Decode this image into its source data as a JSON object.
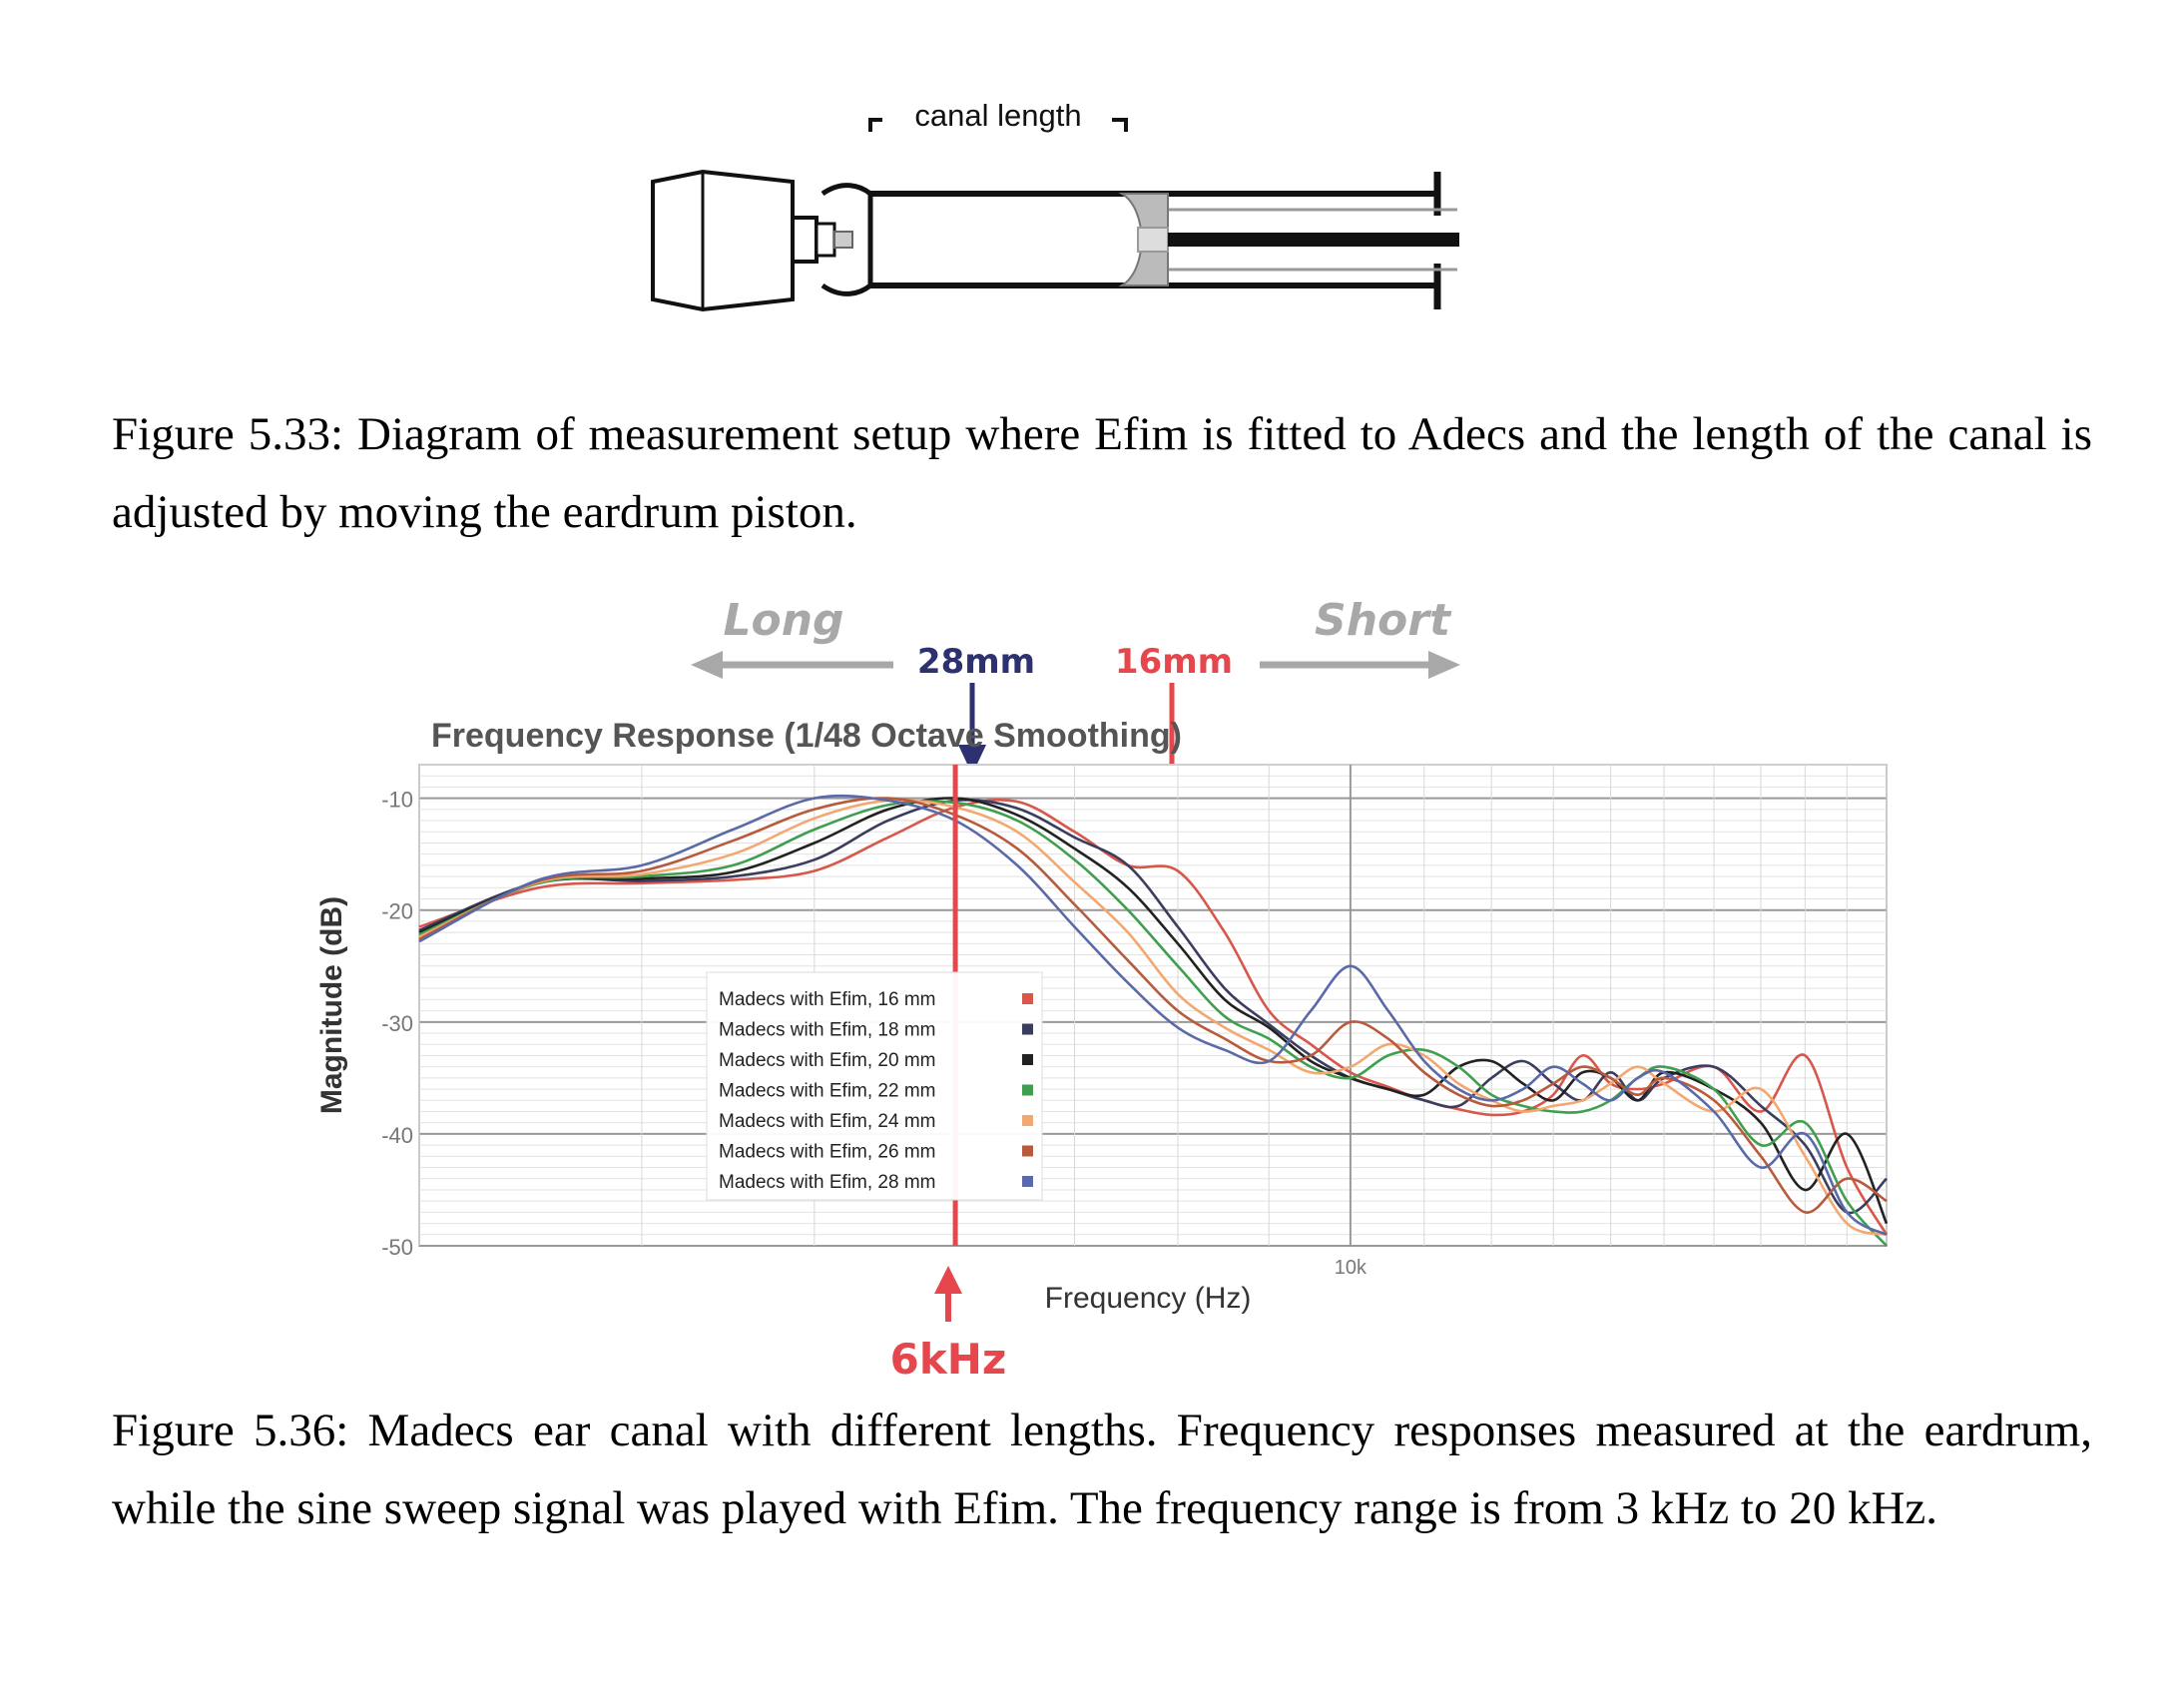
{
  "figure_top": {
    "canal_length_label": "canal length",
    "caption": "Figure 5.33: Diagram of measurement setup where Efim is fitted to Adecs and the length of the canal is adjusted by moving the eardrum piston."
  },
  "figure_bottom": {
    "caption": "Figure 5.36:  Madecs ear canal with different lengths.  Frequency responses measured at the eardrum, while the sine sweep signal was played with Efim. The frequency range is from 3 kHz to 20 kHz.",
    "annotations": {
      "long": "Long",
      "short": "Short",
      "mark_28": "28mm",
      "mark_16": "16mm",
      "mark_6khz": "6kHz",
      "colors": {
        "blue_mark": "#2e3170",
        "red_mark": "#e5474d",
        "gray_arrow": "#a8a8a8"
      }
    }
  },
  "chart_data": {
    "type": "line",
    "title": "Frequency Response (1/48 Octave Smoothing)",
    "xlabel": "Frequency (Hz)",
    "ylabel": "Magnitude (dB)",
    "xscale": "log",
    "xlim": [
      3000,
      20000
    ],
    "ylim": [
      -50,
      -7
    ],
    "yticks": [
      -10,
      -20,
      -30,
      -40,
      -50
    ],
    "xtick_labels": [
      {
        "value": 10000,
        "label": "10k"
      }
    ],
    "grid": true,
    "legend_position": "center-left",
    "series": [
      {
        "name": "Madecs with Efim, 16 mm",
        "color": "#d9564a",
        "x": [
          3000,
          3500,
          4000,
          4500,
          5000,
          5500,
          6000,
          6500,
          7000,
          7500,
          8000,
          8500,
          9000,
          9500,
          10000,
          10500,
          11000,
          11500,
          12000,
          12500,
          13000,
          13500,
          14000,
          14500,
          15000,
          16000,
          17000,
          18000,
          19000,
          20000
        ],
        "y": [
          -21.5,
          -18,
          -17.6,
          -17.3,
          -16.5,
          -13.5,
          -10.8,
          -10.3,
          -13,
          -16,
          -16.5,
          -22,
          -29,
          -32,
          -34.5,
          -35.8,
          -37,
          -37.8,
          -38.3,
          -38,
          -36.5,
          -33,
          -35.5,
          -36,
          -35.5,
          -34,
          -38,
          -33,
          -43,
          -49
        ]
      },
      {
        "name": "Madecs with Efim, 18 mm",
        "color": "#3a3d5e",
        "x": [
          3000,
          3500,
          4000,
          4500,
          5000,
          5500,
          6000,
          6500,
          7000,
          7500,
          8000,
          8500,
          9000,
          9500,
          10000,
          10500,
          11000,
          11500,
          12000,
          12500,
          13000,
          13500,
          14000,
          14500,
          15000,
          16000,
          17000,
          18000,
          19000,
          20000
        ],
        "y": [
          -21.8,
          -17.5,
          -17.4,
          -17,
          -15.5,
          -12,
          -10.2,
          -10.9,
          -13.5,
          -16,
          -21.5,
          -27,
          -30.2,
          -33,
          -35,
          -36,
          -37,
          -37.5,
          -35,
          -33.5,
          -35.5,
          -37,
          -34.5,
          -37,
          -35,
          -34,
          -37.5,
          -41,
          -47,
          -44
        ]
      },
      {
        "name": "Madecs with Efim, 20 mm",
        "color": "#222222",
        "x": [
          3000,
          3500,
          4000,
          4500,
          5000,
          5500,
          6000,
          6500,
          7000,
          7500,
          8000,
          8500,
          9000,
          9500,
          10000,
          10500,
          11000,
          11500,
          12000,
          12500,
          13000,
          13500,
          14000,
          14500,
          15000,
          16000,
          17000,
          18000,
          19000,
          20000
        ],
        "y": [
          -22,
          -17.6,
          -17.2,
          -16.6,
          -14,
          -11,
          -10,
          -11.5,
          -14.5,
          -18,
          -23,
          -28,
          -30.5,
          -33.5,
          -35,
          -36,
          -36.5,
          -34,
          -33.5,
          -35.5,
          -37,
          -34.5,
          -35,
          -37,
          -34.5,
          -36,
          -39,
          -45,
          -40,
          -48
        ]
      },
      {
        "name": "Madecs with Efim, 22 mm",
        "color": "#3f9f4f",
        "x": [
          3000,
          3500,
          4000,
          4500,
          5000,
          5500,
          6000,
          6500,
          7000,
          7500,
          8000,
          8500,
          9000,
          9500,
          10000,
          10500,
          11000,
          11500,
          12000,
          12500,
          13000,
          13500,
          14000,
          14500,
          15000,
          16000,
          17000,
          18000,
          19000,
          20000
        ],
        "y": [
          -22.2,
          -17.6,
          -17,
          -16,
          -12.8,
          -10.6,
          -10.4,
          -12,
          -15.5,
          -20,
          -25,
          -29.5,
          -31.5,
          -34,
          -35,
          -33,
          -32.5,
          -34,
          -36.5,
          -37.5,
          -38,
          -38,
          -37,
          -35,
          -34,
          -36,
          -41,
          -39,
          -46,
          -50
        ]
      },
      {
        "name": "Madecs with Efim, 24 mm",
        "color": "#f2a870",
        "x": [
          3000,
          3500,
          4000,
          4500,
          5000,
          5500,
          6000,
          6500,
          7000,
          7500,
          8000,
          8500,
          9000,
          9500,
          10000,
          10500,
          11000,
          11500,
          12000,
          12500,
          13000,
          13500,
          14000,
          14500,
          15000,
          16000,
          17000,
          18000,
          19000,
          20000
        ],
        "y": [
          -22.4,
          -17.5,
          -16.8,
          -15,
          -11.8,
          -10.2,
          -10.8,
          -13,
          -17.5,
          -22,
          -27.5,
          -30.5,
          -32.5,
          -34.5,
          -34,
          -32,
          -33,
          -35.5,
          -37,
          -38,
          -37.5,
          -37,
          -35.5,
          -34,
          -35.5,
          -38,
          -36,
          -42,
          -48,
          -49
        ]
      },
      {
        "name": "Madecs with Efim, 26 mm",
        "color": "#b85a3c",
        "x": [
          3000,
          3500,
          4000,
          4500,
          5000,
          5500,
          6000,
          6500,
          7000,
          7500,
          8000,
          8500,
          9000,
          9500,
          10000,
          10500,
          11000,
          11500,
          12000,
          12500,
          13000,
          13500,
          14000,
          14500,
          15000,
          16000,
          17000,
          18000,
          19000,
          20000
        ],
        "y": [
          -22.6,
          -17.4,
          -16.5,
          -13.8,
          -11,
          -10,
          -11.5,
          -14.5,
          -19.5,
          -24.5,
          -29,
          -31.5,
          -33.5,
          -33,
          -30,
          -31.5,
          -34.5,
          -36.5,
          -37.5,
          -37,
          -35.5,
          -34,
          -35,
          -36.5,
          -35,
          -37,
          -42,
          -47,
          -44,
          -46
        ]
      },
      {
        "name": "Madecs with Efim, 28 mm",
        "color": "#5a6aa8",
        "x": [
          3000,
          3500,
          4000,
          4500,
          5000,
          5500,
          6000,
          6500,
          7000,
          7500,
          8000,
          8500,
          9000,
          9500,
          10000,
          10500,
          11000,
          11500,
          12000,
          12500,
          13000,
          13500,
          14000,
          14500,
          15000,
          16000,
          17000,
          18000,
          19000,
          20000
        ],
        "y": [
          -22.8,
          -17.3,
          -16,
          -12.8,
          -10,
          -10.2,
          -12,
          -16,
          -21.5,
          -26.5,
          -30.5,
          -32.5,
          -33.5,
          -29,
          -25,
          -29,
          -33.5,
          -36,
          -37,
          -36,
          -34,
          -35.5,
          -37,
          -35,
          -34.5,
          -38,
          -43,
          -40,
          -47,
          -49
        ]
      }
    ]
  }
}
